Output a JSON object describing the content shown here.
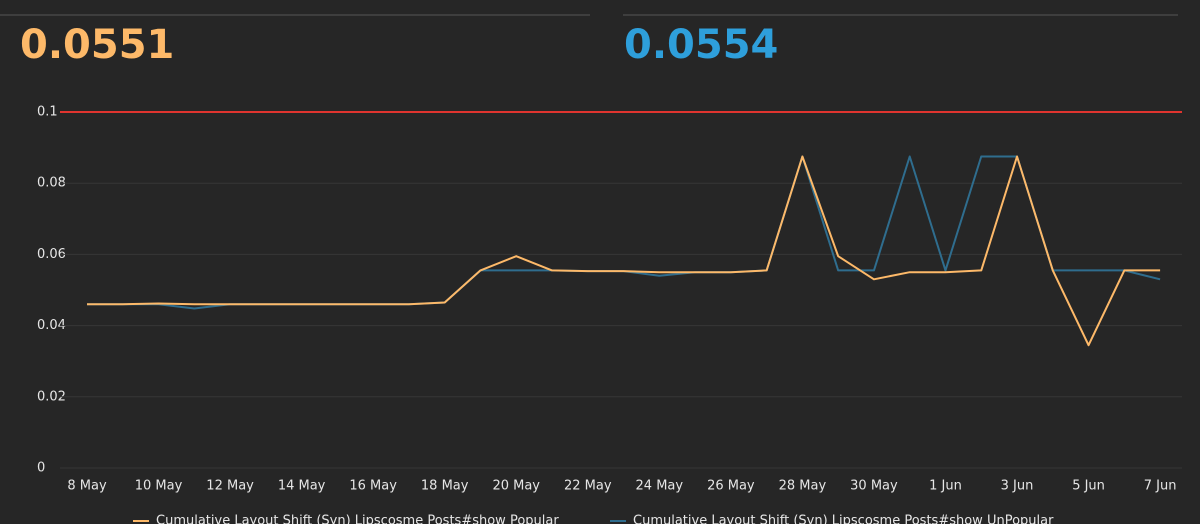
{
  "summaries": [
    {
      "value": 0.0551,
      "color": "#fdb969"
    },
    {
      "value": 0.0554,
      "color": "#2e9fdb"
    }
  ],
  "chart_data": {
    "type": "line",
    "categories": [
      "8 May",
      null,
      "10 May",
      null,
      "12 May",
      null,
      "14 May",
      null,
      "16 May",
      null,
      "18 May",
      null,
      "20 May",
      null,
      "22 May",
      null,
      "24 May",
      null,
      "26 May",
      null,
      "28 May",
      null,
      "30 May",
      null,
      "1 Jun",
      null,
      "3 Jun",
      null,
      "5 Jun",
      null,
      "7 Jun"
    ],
    "series": [
      {
        "name": "Cumulative Layout Shift (Syn) Lipscosme Posts#show Popular",
        "color": "#fdb969",
        "values": [
          0.046,
          0.046,
          0.0462,
          0.046,
          0.046,
          0.046,
          0.046,
          0.046,
          0.046,
          0.046,
          0.0465,
          0.0555,
          0.0595,
          0.0555,
          0.0553,
          0.0553,
          0.055,
          0.055,
          0.055,
          0.0555,
          0.0875,
          0.0595,
          0.053,
          0.055,
          0.055,
          0.0555,
          0.0875,
          0.0555,
          0.0345,
          0.0555,
          0.0555
        ]
      },
      {
        "name": "Cumulative Layout Shift (Syn) Lipscosme Posts#show UnPopular",
        "color": "#2f6d8e",
        "values": [
          0.046,
          0.046,
          0.046,
          0.0448,
          0.046,
          0.046,
          0.046,
          0.046,
          0.046,
          0.046,
          0.0465,
          0.0555,
          0.0555,
          0.0555,
          0.0553,
          0.0553,
          0.054,
          0.055,
          0.055,
          0.0555,
          0.0875,
          0.0555,
          0.0555,
          0.0875,
          0.0555,
          0.0875,
          0.0875,
          0.0555,
          0.0555,
          0.0555,
          0.053
        ]
      }
    ],
    "ylim": [
      0,
      0.1
    ],
    "yticks": [
      0,
      0.02,
      0.04,
      0.06,
      0.08,
      0.1
    ],
    "grid": true,
    "threshold": {
      "value": 0.1,
      "color": "#e0342f"
    }
  }
}
